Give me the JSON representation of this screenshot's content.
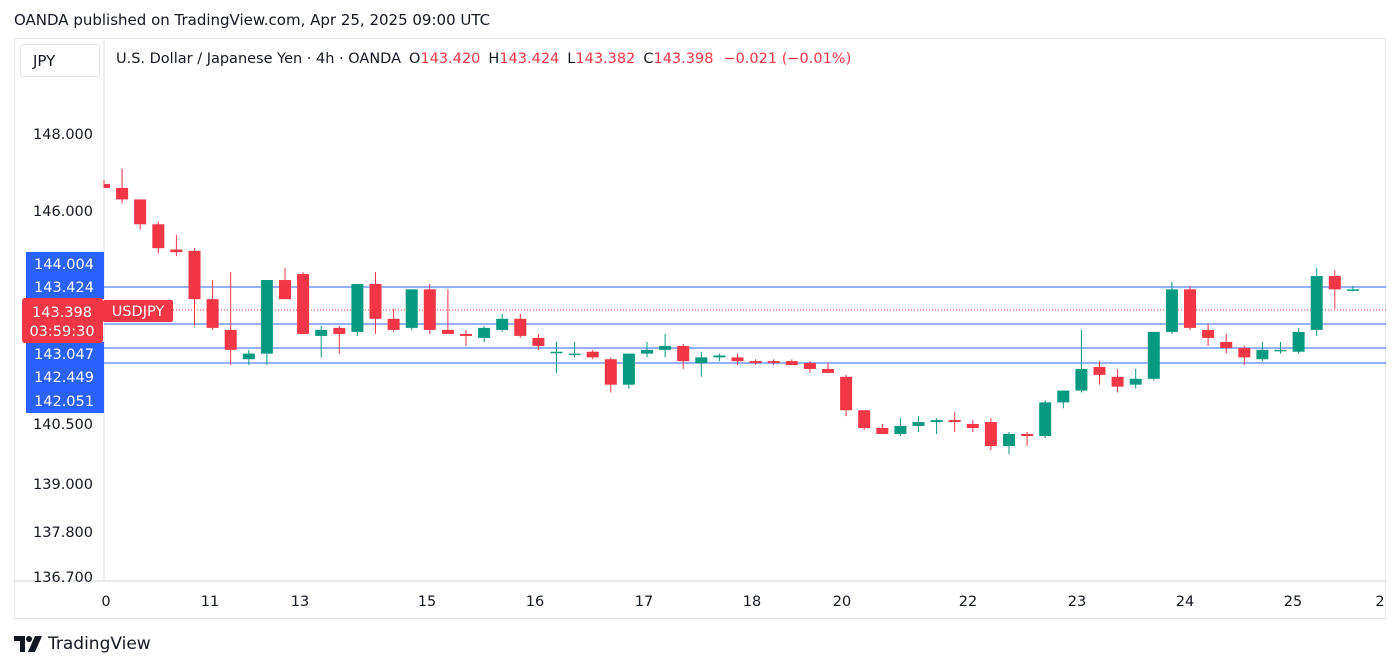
{
  "header": {
    "published_text": "OANDA published on TradingView.com, Apr 25, 2025 09:00 UTC"
  },
  "symbol_box": {
    "label": "JPY"
  },
  "legend": {
    "title": "U.S. Dollar / Japanese Yen · 4h · OANDA",
    "o_label": "O",
    "o_value": "143.420",
    "h_label": "H",
    "h_value": "143.424",
    "l_label": "L",
    "l_value": "143.382",
    "c_label": "C",
    "c_value": "143.398",
    "change": "−0.021 (−0.01%)"
  },
  "footer": {
    "brand": "TradingView"
  },
  "colors": {
    "up": "#089981",
    "down": "#f23645",
    "hline": "#2962ff",
    "price_badge": "#f23645",
    "level_badge": "#2962ff",
    "axis_border": "#e0e3eb"
  },
  "chart_data": {
    "type": "candlestick",
    "symbol": "USDJPY",
    "interval": "4h",
    "y_ticks": [
      "148.000",
      "146.000",
      "140.500",
      "139.000",
      "137.800",
      "136.700"
    ],
    "x_ticks": [
      "0",
      "11",
      "13",
      "15",
      "16",
      "17",
      "18",
      "20",
      "22",
      "23",
      "24",
      "25",
      "2"
    ],
    "horizontal_levels": [
      {
        "label": "144.004",
        "value": 144.004
      },
      {
        "label": "143.424",
        "value": 143.424
      },
      {
        "label": "143.047",
        "value": 143.047
      },
      {
        "label": "142.449",
        "value": 142.449
      },
      {
        "label": "142.051",
        "value": 142.051
      }
    ],
    "last_price": {
      "value": "143.398",
      "symbol": "USDJPY",
      "countdown": "03:59:30"
    },
    "candles": [
      {
        "o": 146.7,
        "h": 146.8,
        "l": 146.6,
        "c": 146.6
      },
      {
        "o": 146.6,
        "h": 147.1,
        "l": 146.2,
        "c": 146.3
      },
      {
        "o": 146.3,
        "h": 146.3,
        "l": 145.3,
        "c": 145.5
      },
      {
        "o": 145.5,
        "h": 145.6,
        "l": 144.4,
        "c": 144.6
      },
      {
        "o": 144.55,
        "h": 145.1,
        "l": 144.3,
        "c": 144.45
      },
      {
        "o": 144.5,
        "h": 144.6,
        "l": 143.0,
        "c": 143.3
      },
      {
        "o": 143.3,
        "h": 143.6,
        "l": 142.9,
        "c": 142.95
      },
      {
        "o": 142.9,
        "h": 143.8,
        "l": 142.0,
        "c": 142.4
      },
      {
        "o": 142.15,
        "h": 142.4,
        "l": 142.0,
        "c": 142.3
      },
      {
        "o": 142.3,
        "h": 143.6,
        "l": 142.0,
        "c": 143.6
      },
      {
        "o": 143.6,
        "h": 143.9,
        "l": 143.3,
        "c": 143.3
      },
      {
        "o": 143.75,
        "h": 143.8,
        "l": 142.8,
        "c": 142.8
      },
      {
        "o": 142.75,
        "h": 143.0,
        "l": 142.2,
        "c": 142.9
      },
      {
        "o": 142.95,
        "h": 143.0,
        "l": 142.3,
        "c": 142.8
      },
      {
        "o": 142.85,
        "h": 143.5,
        "l": 142.75,
        "c": 143.5
      },
      {
        "o": 143.5,
        "h": 143.8,
        "l": 142.8,
        "c": 143.1
      },
      {
        "o": 143.1,
        "h": 143.2,
        "l": 142.85,
        "c": 142.9
      },
      {
        "o": 142.95,
        "h": 143.4,
        "l": 142.9,
        "c": 143.4
      },
      {
        "o": 143.4,
        "h": 143.5,
        "l": 142.8,
        "c": 142.9
      },
      {
        "o": 142.9,
        "h": 143.4,
        "l": 142.8,
        "c": 142.8
      },
      {
        "o": 142.8,
        "h": 142.9,
        "l": 142.5,
        "c": 142.75
      },
      {
        "o": 142.7,
        "h": 143.0,
        "l": 142.6,
        "c": 142.95
      },
      {
        "o": 142.9,
        "h": 143.15,
        "l": 142.85,
        "c": 143.1
      },
      {
        "o": 143.1,
        "h": 143.15,
        "l": 142.7,
        "c": 142.75
      },
      {
        "o": 142.7,
        "h": 142.8,
        "l": 142.4,
        "c": 142.5
      },
      {
        "o": 142.35,
        "h": 142.6,
        "l": 141.8,
        "c": 142.35
      },
      {
        "o": 142.3,
        "h": 142.6,
        "l": 142.2,
        "c": 142.3
      },
      {
        "o": 142.35,
        "h": 142.4,
        "l": 142.15,
        "c": 142.2
      },
      {
        "o": 142.15,
        "h": 142.2,
        "l": 141.3,
        "c": 141.5
      },
      {
        "o": 141.5,
        "h": 142.3,
        "l": 141.4,
        "c": 142.3
      },
      {
        "o": 142.3,
        "h": 142.6,
        "l": 142.2,
        "c": 142.4
      },
      {
        "o": 142.4,
        "h": 142.8,
        "l": 142.2,
        "c": 142.5
      },
      {
        "o": 142.5,
        "h": 142.55,
        "l": 141.9,
        "c": 142.1
      },
      {
        "o": 142.05,
        "h": 142.35,
        "l": 141.7,
        "c": 142.2
      },
      {
        "o": 142.2,
        "h": 142.3,
        "l": 142.1,
        "c": 142.25
      },
      {
        "o": 142.2,
        "h": 142.3,
        "l": 142.0,
        "c": 142.1
      },
      {
        "o": 142.1,
        "h": 142.15,
        "l": 142.0,
        "c": 142.05
      },
      {
        "o": 142.1,
        "h": 142.15,
        "l": 142.0,
        "c": 142.05
      },
      {
        "o": 142.1,
        "h": 142.15,
        "l": 142.0,
        "c": 142.0
      },
      {
        "o": 142.05,
        "h": 142.1,
        "l": 141.8,
        "c": 141.9
      },
      {
        "o": 141.9,
        "h": 142.05,
        "l": 141.8,
        "c": 141.8
      },
      {
        "o": 141.7,
        "h": 141.75,
        "l": 140.7,
        "c": 140.85
      },
      {
        "o": 140.85,
        "h": 140.85,
        "l": 140.35,
        "c": 140.4
      },
      {
        "o": 140.4,
        "h": 140.5,
        "l": 140.25,
        "c": 140.25
      },
      {
        "o": 140.25,
        "h": 140.65,
        "l": 140.2,
        "c": 140.45
      },
      {
        "o": 140.45,
        "h": 140.7,
        "l": 140.3,
        "c": 140.55
      },
      {
        "o": 140.55,
        "h": 140.65,
        "l": 140.25,
        "c": 140.6
      },
      {
        "o": 140.6,
        "h": 140.8,
        "l": 140.3,
        "c": 140.55
      },
      {
        "o": 140.5,
        "h": 140.6,
        "l": 140.3,
        "c": 140.4
      },
      {
        "o": 140.55,
        "h": 140.65,
        "l": 139.85,
        "c": 139.95
      },
      {
        "o": 139.95,
        "h": 140.3,
        "l": 139.75,
        "c": 140.25
      },
      {
        "o": 140.25,
        "h": 140.3,
        "l": 139.95,
        "c": 140.2
      },
      {
        "o": 140.2,
        "h": 141.1,
        "l": 140.15,
        "c": 141.05
      },
      {
        "o": 141.05,
        "h": 141.35,
        "l": 140.9,
        "c": 141.35
      },
      {
        "o": 141.35,
        "h": 142.9,
        "l": 141.3,
        "c": 141.9
      },
      {
        "o": 141.95,
        "h": 142.1,
        "l": 141.5,
        "c": 141.75
      },
      {
        "o": 141.7,
        "h": 141.9,
        "l": 141.3,
        "c": 141.45
      },
      {
        "o": 141.5,
        "h": 141.9,
        "l": 141.4,
        "c": 141.65
      },
      {
        "o": 141.65,
        "h": 142.85,
        "l": 141.6,
        "c": 142.85
      },
      {
        "o": 142.85,
        "h": 143.55,
        "l": 142.8,
        "c": 143.4
      },
      {
        "o": 143.4,
        "h": 143.45,
        "l": 142.9,
        "c": 142.95
      },
      {
        "o": 142.9,
        "h": 143.05,
        "l": 142.5,
        "c": 142.7
      },
      {
        "o": 142.6,
        "h": 142.8,
        "l": 142.3,
        "c": 142.45
      },
      {
        "o": 142.45,
        "h": 142.5,
        "l": 142.0,
        "c": 142.2
      },
      {
        "o": 142.15,
        "h": 142.6,
        "l": 142.1,
        "c": 142.4
      },
      {
        "o": 142.4,
        "h": 142.6,
        "l": 142.3,
        "c": 142.4
      },
      {
        "o": 142.35,
        "h": 142.95,
        "l": 142.3,
        "c": 142.85
      },
      {
        "o": 142.9,
        "h": 143.9,
        "l": 142.75,
        "c": 143.7
      },
      {
        "o": 143.7,
        "h": 143.85,
        "l": 143.2,
        "c": 143.4
      },
      {
        "o": 143.4,
        "h": 143.45,
        "l": 143.38,
        "c": 143.4
      }
    ]
  }
}
